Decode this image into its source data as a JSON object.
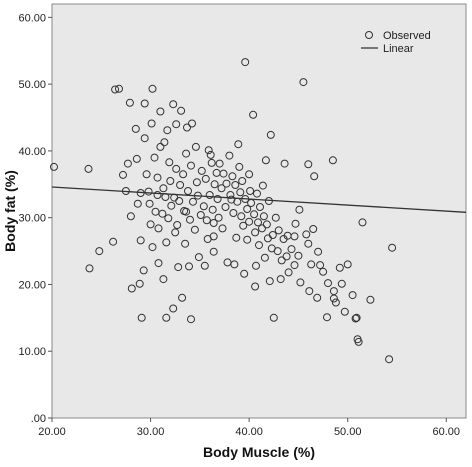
{
  "chart_data": {
    "type": "scatter",
    "xlabel": "Body Muscle (%)",
    "ylabel": "Body fat (%)",
    "xlim": [
      20,
      62
    ],
    "ylim": [
      0,
      62
    ],
    "x_ticks": [
      20,
      30,
      40,
      50,
      60
    ],
    "x_tick_labels": [
      "20.00",
      "30.00",
      "40.00",
      "50.00",
      "60.00"
    ],
    "y_ticks": [
      0,
      10,
      20,
      30,
      40,
      50,
      60
    ],
    "y_tick_labels": [
      ".00",
      "10.00",
      "20.00",
      "30.00",
      "40.00",
      "50.00",
      "60.00"
    ],
    "grid": false,
    "legend": {
      "placement": "top-right",
      "entries": [
        {
          "label": "Observed",
          "marker": "open-circle"
        },
        {
          "label": "Linear",
          "marker": "line"
        }
      ]
    },
    "colors": {
      "plot_background": "#e8e8e8",
      "marker": "#333333",
      "line": "#333333"
    },
    "fit_line": {
      "name": "Linear",
      "x": [
        20,
        62
      ],
      "y": [
        34.6,
        30.8
      ]
    },
    "series": [
      {
        "name": "Observed",
        "points": [
          [
            20.2,
            37.6
          ],
          [
            23.7,
            37.3
          ],
          [
            23.8,
            22.4
          ],
          [
            24.8,
            25.0
          ],
          [
            26.2,
            26.4
          ],
          [
            26.4,
            49.2
          ],
          [
            26.8,
            49.3
          ],
          [
            27.2,
            36.4
          ],
          [
            27.5,
            34.0
          ],
          [
            27.9,
            47.2
          ],
          [
            28.0,
            30.2
          ],
          [
            28.1,
            19.4
          ],
          [
            28.5,
            43.3
          ],
          [
            28.6,
            38.8
          ],
          [
            28.7,
            32.1
          ],
          [
            29.0,
            33.7
          ],
          [
            28.9,
            20.1
          ],
          [
            29.1,
            15.0
          ],
          [
            29.3,
            22.1
          ],
          [
            29.0,
            26.6
          ],
          [
            29.4,
            41.9
          ],
          [
            29.6,
            36.5
          ],
          [
            29.8,
            33.9
          ],
          [
            30.0,
            29.0
          ],
          [
            29.9,
            32.1
          ],
          [
            30.2,
            25.6
          ],
          [
            30.2,
            49.3
          ],
          [
            30.1,
            44.1
          ],
          [
            30.4,
            39.0
          ],
          [
            30.5,
            30.9
          ],
          [
            30.7,
            36.0
          ],
          [
            30.7,
            33.4
          ],
          [
            30.8,
            28.4
          ],
          [
            30.8,
            23.2
          ],
          [
            31.0,
            40.6
          ],
          [
            31.2,
            30.6
          ],
          [
            31.3,
            34.4
          ],
          [
            31.3,
            20.8
          ],
          [
            31.6,
            15.0
          ],
          [
            31.6,
            26.3
          ],
          [
            31.7,
            43.1
          ],
          [
            31.8,
            29.9
          ],
          [
            31.9,
            38.3
          ],
          [
            32.0,
            35.5
          ],
          [
            32.1,
            31.8
          ],
          [
            32.3,
            16.4
          ],
          [
            32.3,
            47.0
          ],
          [
            32.4,
            33.0
          ],
          [
            32.6,
            44.0
          ],
          [
            32.6,
            37.3
          ],
          [
            32.7,
            28.9
          ],
          [
            32.8,
            22.6
          ],
          [
            32.9,
            32.5
          ],
          [
            33.0,
            34.9
          ],
          [
            33.2,
            18.0
          ],
          [
            33.3,
            36.5
          ],
          [
            33.4,
            31.0
          ],
          [
            33.5,
            26.1
          ],
          [
            33.6,
            39.6
          ],
          [
            33.8,
            34.0
          ],
          [
            33.9,
            22.7
          ],
          [
            34.0,
            29.7
          ],
          [
            34.1,
            37.8
          ],
          [
            34.1,
            14.8
          ],
          [
            34.3,
            32.4
          ],
          [
            34.5,
            28.2
          ],
          [
            34.6,
            40.6
          ],
          [
            34.7,
            35.3
          ],
          [
            34.8,
            33.3
          ],
          [
            34.9,
            24.1
          ],
          [
            35.1,
            30.4
          ],
          [
            35.2,
            37.0
          ],
          [
            35.4,
            31.7
          ],
          [
            35.5,
            22.8
          ],
          [
            35.6,
            35.8
          ],
          [
            35.7,
            29.6
          ],
          [
            35.9,
            40.1
          ],
          [
            36.0,
            33.4
          ],
          [
            36.2,
            38.2
          ],
          [
            36.3,
            31.2
          ],
          [
            36.4,
            27.2
          ],
          [
            36.5,
            35.0
          ],
          [
            36.7,
            36.7
          ],
          [
            36.8,
            32.8
          ],
          [
            36.9,
            30.0
          ],
          [
            37.0,
            38.1
          ],
          [
            37.2,
            34.4
          ],
          [
            37.4,
            36.6
          ],
          [
            37.6,
            31.6
          ],
          [
            37.7,
            35.1
          ],
          [
            37.8,
            23.3
          ],
          [
            38.0,
            39.3
          ],
          [
            38.1,
            33.4
          ],
          [
            38.3,
            36.2
          ],
          [
            38.4,
            30.7
          ],
          [
            38.6,
            34.9
          ],
          [
            38.7,
            27.0
          ],
          [
            38.8,
            32.4
          ],
          [
            39.0,
            37.6
          ],
          [
            39.1,
            33.8
          ],
          [
            39.2,
            30.2
          ],
          [
            39.3,
            35.5
          ],
          [
            39.4,
            28.8
          ],
          [
            39.6,
            32.8
          ],
          [
            39.6,
            53.3
          ],
          [
            39.8,
            31.3
          ],
          [
            40.0,
            36.5
          ],
          [
            40.0,
            29.4
          ],
          [
            40.1,
            34.0
          ],
          [
            40.2,
            32.2
          ],
          [
            40.4,
            45.4
          ],
          [
            40.5,
            30.5
          ],
          [
            40.6,
            27.8
          ],
          [
            40.8,
            33.6
          ],
          [
            40.9,
            29.3
          ],
          [
            41.0,
            25.9
          ],
          [
            41.1,
            31.6
          ],
          [
            41.3,
            28.4
          ],
          [
            41.4,
            34.8
          ],
          [
            41.5,
            30.2
          ],
          [
            41.6,
            24.0
          ],
          [
            41.8,
            29.0
          ],
          [
            41.9,
            26.9
          ],
          [
            42.0,
            32.5
          ],
          [
            42.1,
            20.5
          ],
          [
            42.2,
            42.4
          ],
          [
            42.4,
            27.4
          ],
          [
            42.5,
            15.0
          ],
          [
            42.7,
            30.0
          ],
          [
            42.9,
            25.0
          ],
          [
            43.0,
            28.1
          ],
          [
            43.3,
            23.6
          ],
          [
            43.5,
            26.8
          ],
          [
            43.6,
            38.1
          ],
          [
            43.9,
            27.3
          ],
          [
            44.0,
            21.8
          ],
          [
            44.3,
            25.3
          ],
          [
            44.6,
            27.2
          ],
          [
            45.0,
            24.3
          ],
          [
            45.2,
            20.3
          ],
          [
            45.5,
            50.3
          ],
          [
            45.8,
            27.5
          ],
          [
            46.0,
            38.0
          ],
          [
            46.1,
            19.0
          ],
          [
            46.3,
            23.0
          ],
          [
            46.6,
            36.2
          ],
          [
            46.9,
            18.0
          ],
          [
            47.0,
            24.9
          ],
          [
            47.5,
            21.9
          ],
          [
            47.9,
            15.1
          ],
          [
            48.0,
            20.2
          ],
          [
            48.5,
            38.6
          ],
          [
            48.6,
            19.0
          ],
          [
            48.8,
            17.3
          ],
          [
            49.2,
            22.5
          ],
          [
            49.4,
            20.1
          ],
          [
            49.7,
            15.9
          ],
          [
            50.0,
            23.0
          ],
          [
            50.5,
            18.4
          ],
          [
            50.9,
            15.0
          ],
          [
            51.1,
            11.4
          ],
          [
            51.5,
            29.3
          ],
          [
            52.3,
            17.7
          ],
          [
            54.2,
            8.8
          ],
          [
            54.5,
            25.5
          ],
          [
            33.7,
            43.5
          ],
          [
            36.4,
            24.9
          ],
          [
            38.5,
            23.0
          ],
          [
            39.5,
            21.6
          ],
          [
            40.6,
            19.7
          ],
          [
            43.2,
            20.8
          ],
          [
            47.2,
            22.9
          ],
          [
            32.5,
            27.8
          ],
          [
            35.8,
            26.8
          ],
          [
            37.3,
            28.4
          ],
          [
            40.7,
            22.8
          ],
          [
            27.7,
            38.1
          ],
          [
            31.4,
            41.3
          ],
          [
            34.2,
            44.1
          ],
          [
            36.1,
            39.4
          ],
          [
            38.9,
            41.0
          ],
          [
            41.7,
            38.6
          ],
          [
            45.1,
            31.2
          ],
          [
            44.7,
            29.1
          ],
          [
            46.5,
            28.3
          ],
          [
            29.4,
            47.1
          ],
          [
            31.0,
            45.9
          ],
          [
            33.1,
            46.0
          ],
          [
            31.5,
            33.1
          ],
          [
            33.6,
            30.9
          ],
          [
            36.4,
            29.2
          ],
          [
            38.2,
            32.7
          ],
          [
            39.8,
            26.7
          ],
          [
            42.3,
            25.4
          ],
          [
            43.8,
            24.2
          ],
          [
            44.6,
            22.9
          ],
          [
            48.6,
            17.9
          ],
          [
            50.8,
            14.9
          ],
          [
            51.0,
            11.8
          ],
          [
            46.0,
            26.1
          ]
        ]
      }
    ]
  }
}
